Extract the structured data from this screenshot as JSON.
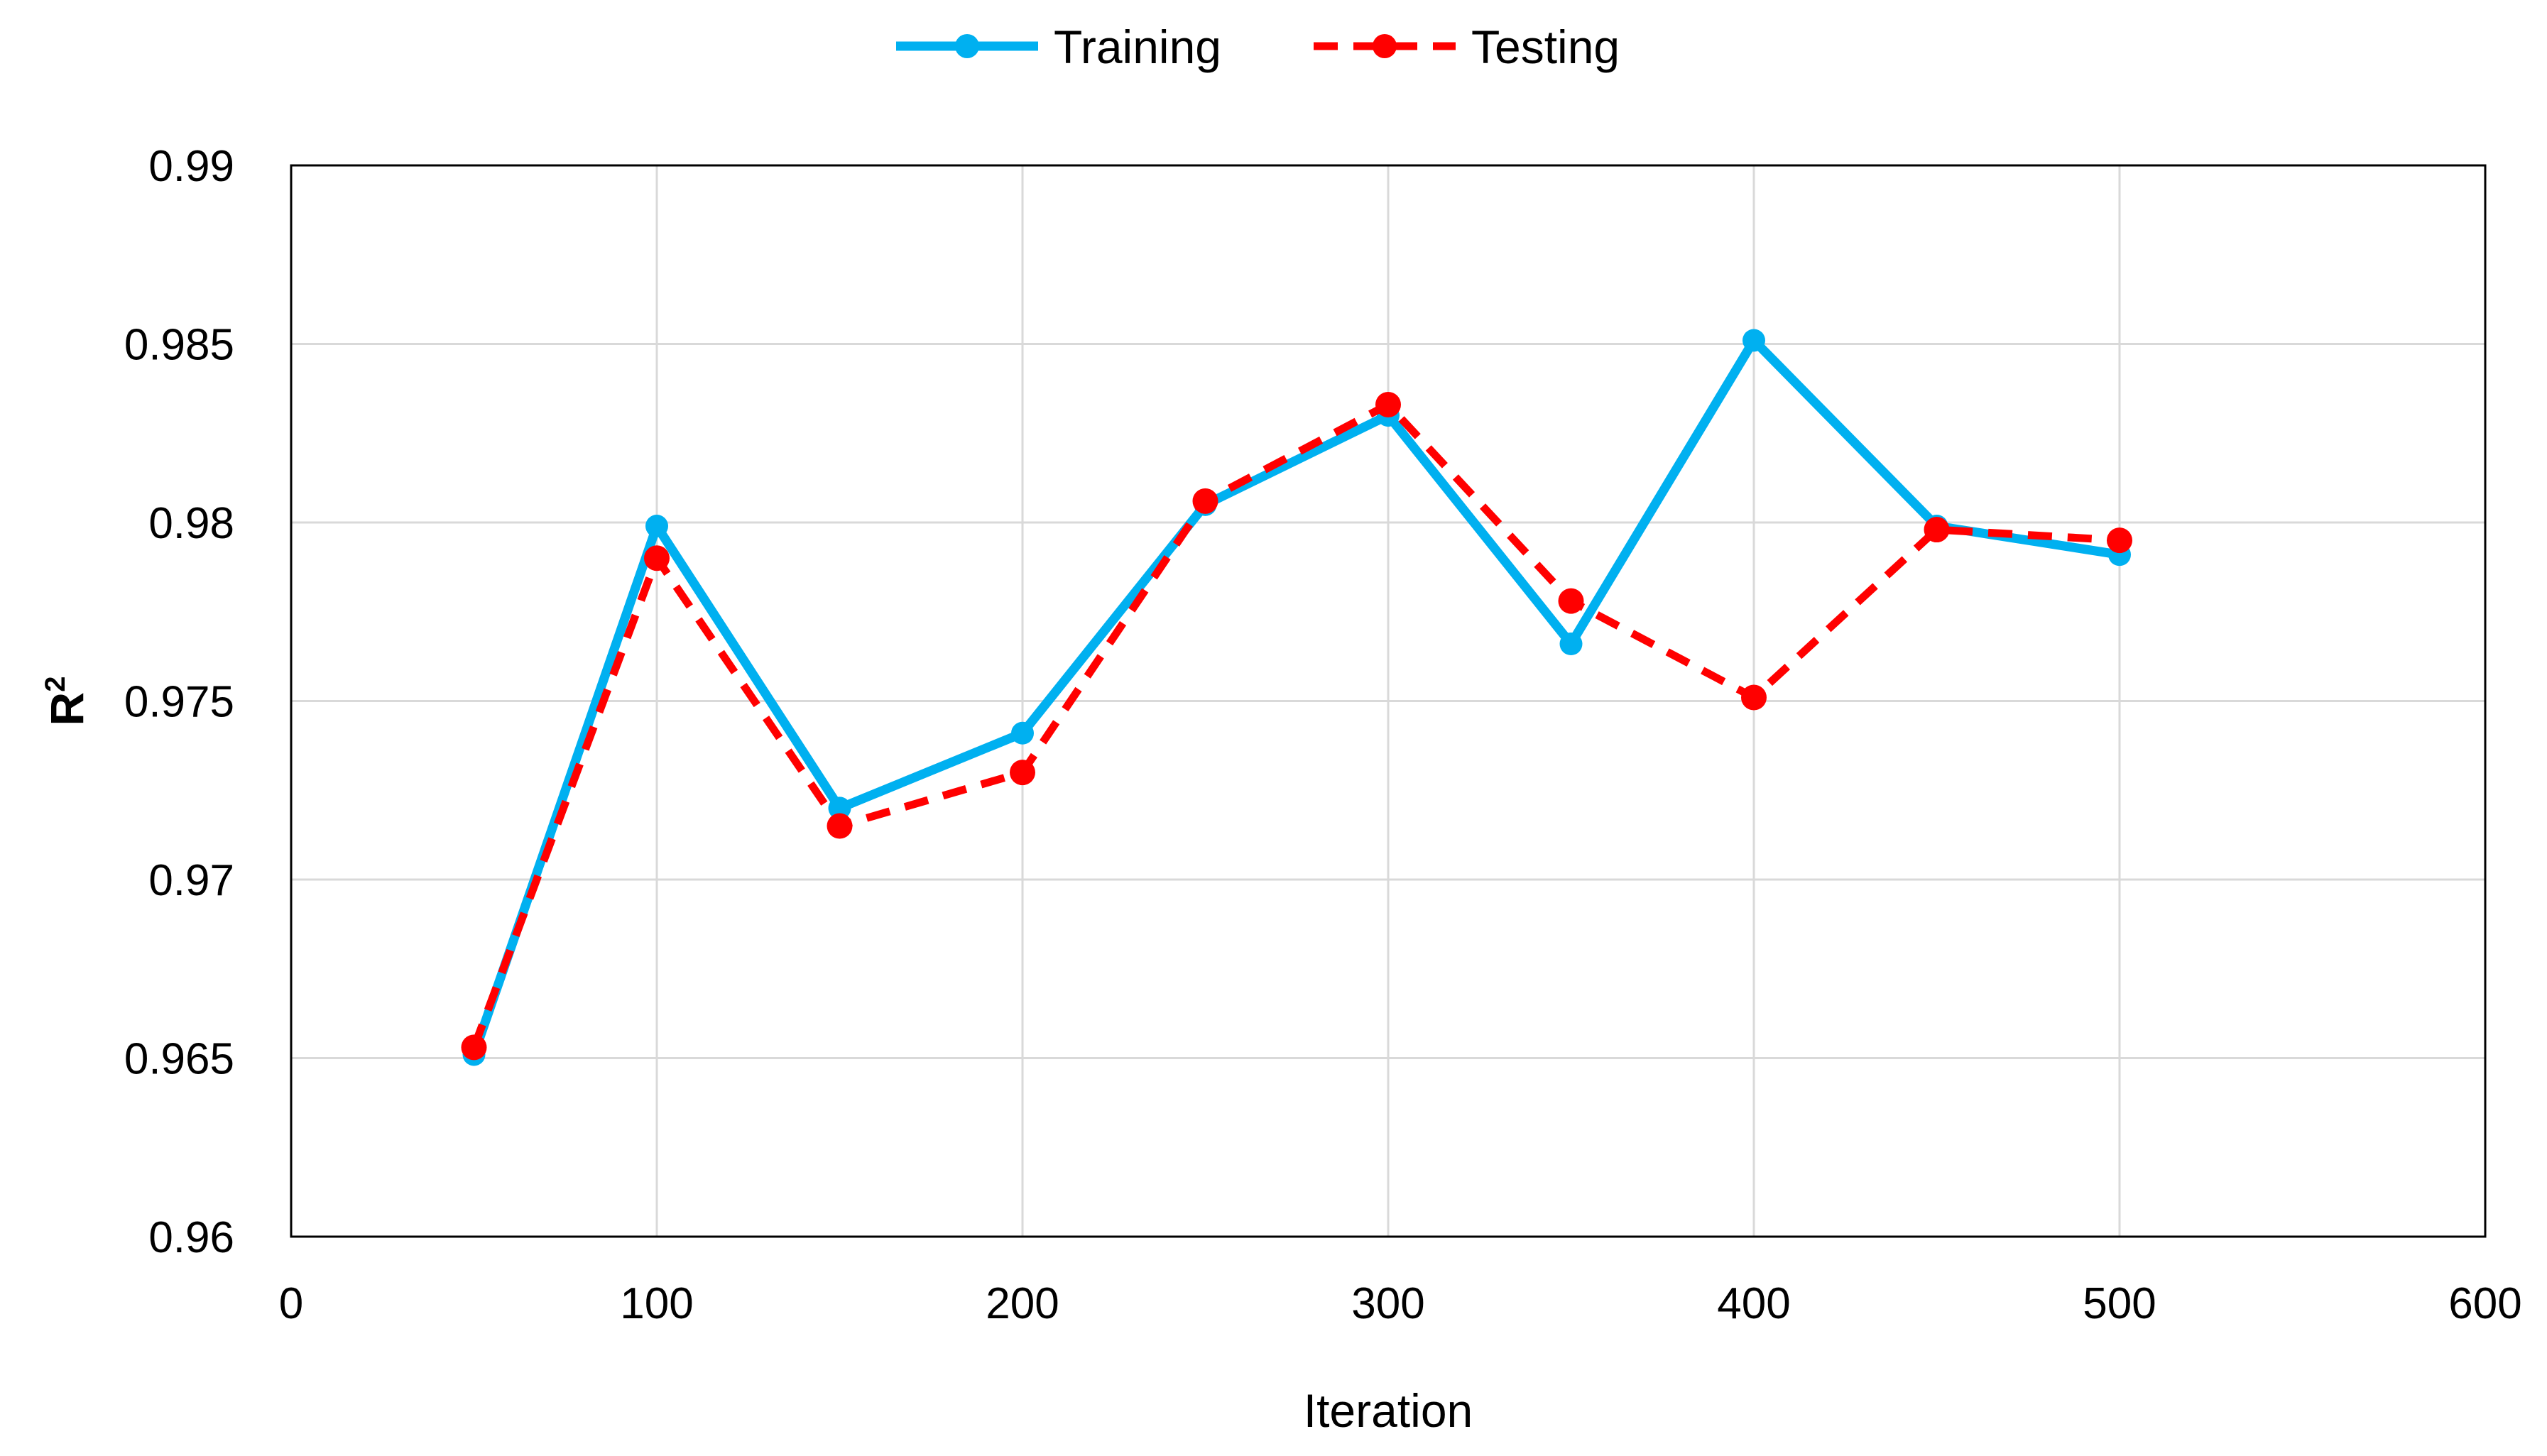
{
  "chart_data": {
    "type": "line",
    "xlabel": "Iteration",
    "ylabel": {
      "base": "R",
      "sup": "2"
    },
    "xlim": [
      0,
      600
    ],
    "ylim": [
      0.96,
      0.99
    ],
    "xticks": [
      0,
      100,
      200,
      300,
      400,
      500,
      600
    ],
    "xtick_labels": [
      "0",
      "100",
      "200",
      "300",
      "400",
      "500",
      "600"
    ],
    "yticks": [
      0.96,
      0.965,
      0.97,
      0.975,
      0.98,
      0.985,
      0.99
    ],
    "ytick_labels": [
      "0.96",
      "0.965",
      "0.97",
      "0.975",
      "0.98",
      "0.985",
      "0.99"
    ],
    "grid": true,
    "legend_position": "top-center",
    "x": [
      50,
      100,
      150,
      200,
      250,
      300,
      350,
      400,
      450,
      500
    ],
    "series": [
      {
        "name": "Training",
        "color": "#00B0F0",
        "dash": "solid",
        "values": [
          0.9651,
          0.9799,
          0.972,
          0.9741,
          0.9805,
          0.983,
          0.9766,
          0.9851,
          0.9799,
          0.9791
        ]
      },
      {
        "name": "Testing",
        "color": "#FF0000",
        "dash": "dashed",
        "values": [
          0.9653,
          0.979,
          0.9715,
          0.973,
          0.9806,
          0.9833,
          0.9778,
          0.9751,
          0.9798,
          0.9795
        ]
      }
    ]
  }
}
